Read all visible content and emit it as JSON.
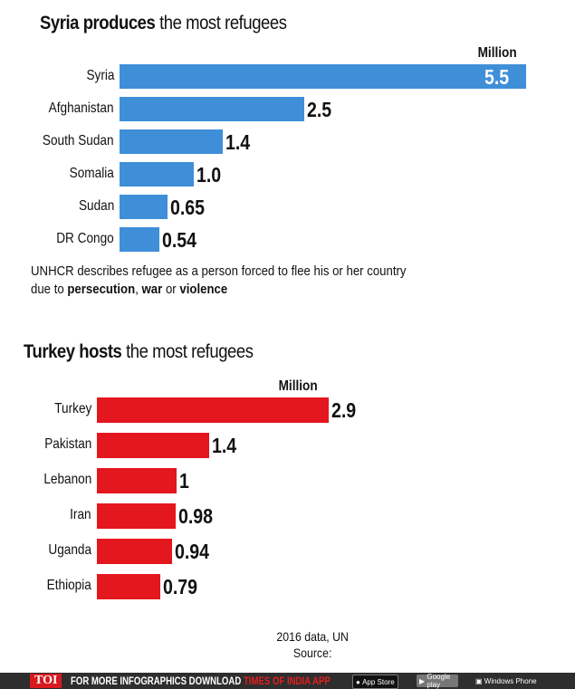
{
  "chart_data": [
    {
      "type": "bar",
      "orientation": "horizontal",
      "title_bold": "Syria produces",
      "title_rest": "the most refugees",
      "unit": "Million",
      "color": "#3e8fd8",
      "categories": [
        "Syria",
        "Afghanistan",
        "South Sudan",
        "Somalia",
        "Sudan",
        "DR Congo"
      ],
      "values": [
        5.5,
        2.5,
        1.4,
        1.0,
        0.65,
        0.54
      ],
      "labels": [
        "5.5",
        "2.5",
        "1.4",
        "1.0",
        "0.65",
        "0.54"
      ]
    },
    {
      "type": "bar",
      "orientation": "horizontal",
      "title_bold": "Turkey hosts",
      "title_rest": "the most refugees",
      "unit": "Million",
      "color": "#e4161e",
      "categories": [
        "Turkey",
        "Pakistan",
        "Lebanon",
        "Iran",
        "Uganda",
        "Ethiopia"
      ],
      "values": [
        2.9,
        1.4,
        1,
        0.98,
        0.94,
        0.79
      ],
      "labels": [
        "2.9",
        "1.4",
        "1",
        "0.98",
        "0.94",
        "0.79"
      ]
    }
  ],
  "note": {
    "line1": "UNHCR describes refugee as a person forced to flee his or her country",
    "pre": "due to ",
    "b1": "persecution",
    "m1": ", ",
    "b2": "war",
    "m2": " or ",
    "b3": "violence"
  },
  "source": {
    "line1": "2016 data, UN",
    "line2": "Source:"
  },
  "footer": {
    "logo": "TOI",
    "text": "FOR MORE  INFOGRAPHICS DOWNLOAD ",
    "app": "TIMES OF INDIA  APP",
    "appstore": "App Store",
    "googleplay": "Google play",
    "windows": "Windows Phone"
  }
}
